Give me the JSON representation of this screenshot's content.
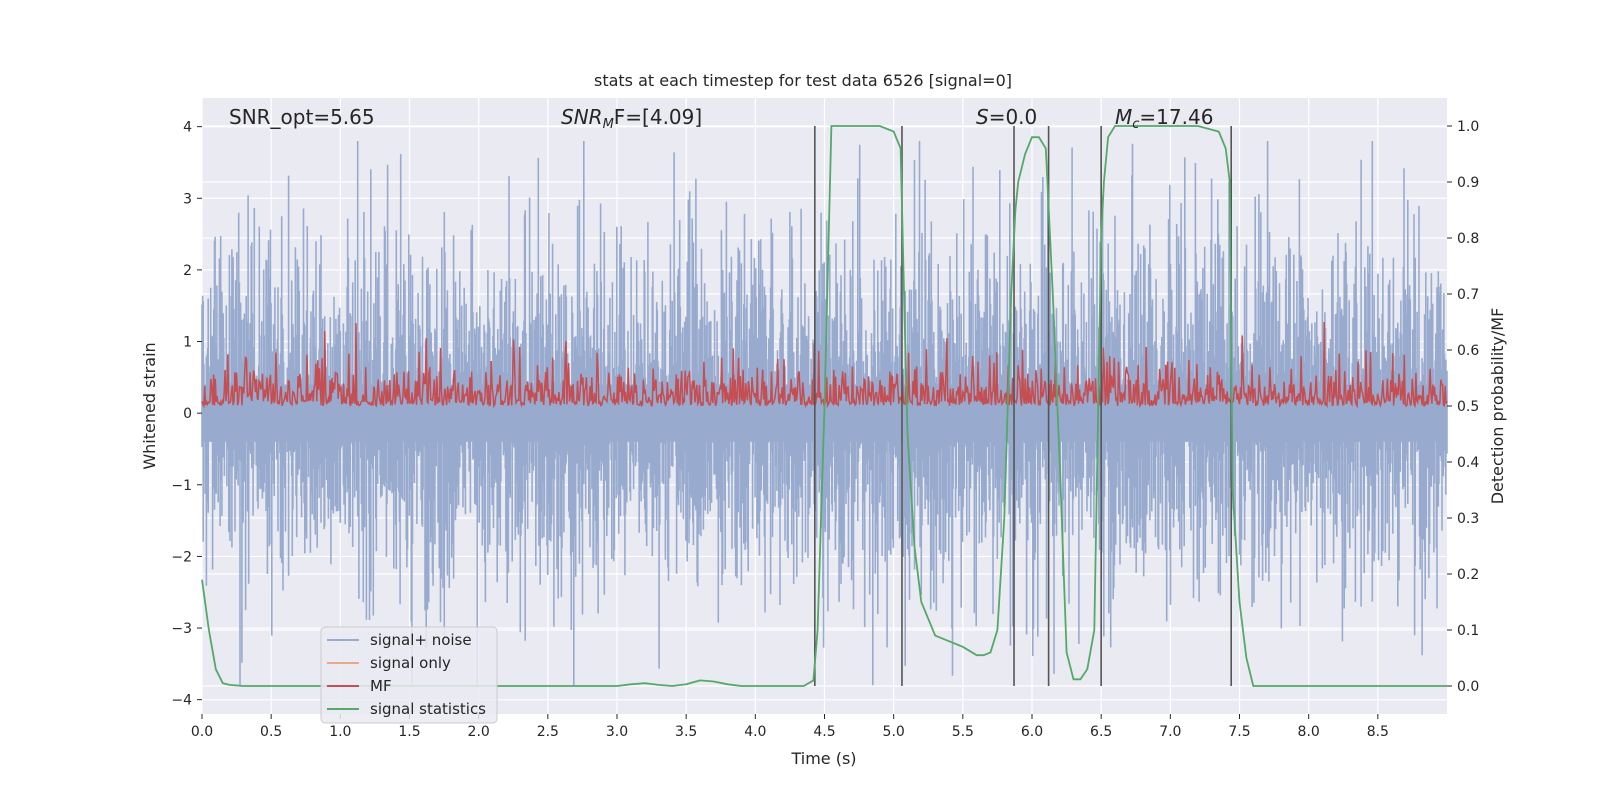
{
  "chart_data": {
    "type": "line",
    "title": "stats at each timestep for test data 6526 [signal=0]",
    "xlabel": "Time (s)",
    "ylabel_left": "Whitened strain",
    "ylabel_right": "Detection probability/MF",
    "xlim": [
      0,
      9
    ],
    "ylim_left": [
      -4.2,
      4.4
    ],
    "ylim_right": [
      -0.05,
      1.05
    ],
    "x_ticks": [
      "0.0",
      "0.5",
      "1.0",
      "1.5",
      "2.0",
      "2.5",
      "3.0",
      "3.5",
      "4.0",
      "4.5",
      "5.0",
      "5.5",
      "6.0",
      "6.5",
      "7.0",
      "7.5",
      "8.0",
      "8.5"
    ],
    "y_left_ticks": [
      "4",
      "3",
      "2",
      "1",
      "0",
      "−1",
      "−2",
      "−3",
      "−4"
    ],
    "y_right_ticks": [
      "1.0",
      "0.9",
      "0.8",
      "0.7",
      "0.6",
      "0.5",
      "0.4",
      "0.3",
      "0.2",
      "0.1",
      "0.0"
    ],
    "grid": true,
    "legend_position": "lower-left",
    "legend": [
      "signal+ noise",
      "signal only",
      "MF",
      "signal statistics"
    ],
    "annotations": {
      "snr_opt": "SNR_opt=5.65",
      "snr_mf_main": "SNR",
      "snr_mf_sub": "M",
      "snr_mf_tail": "F=[4.09]",
      "s_main": "S",
      "s_tail": "=0.0",
      "mc_main": "M",
      "mc_sub": "c",
      "mc_tail": "=17.46"
    },
    "colors": {
      "noise": "#98abcf",
      "signal_only": "#e8a88a",
      "mf": "#c44e52",
      "stat": "#55a868",
      "vline": "#555555",
      "background": "#eaeaf2",
      "grid": "#ffffff"
    },
    "series": [
      {
        "name": "signal statistics",
        "axis": "right",
        "x": [
          0.0,
          0.05,
          0.1,
          0.15,
          0.2,
          0.3,
          0.5,
          1.0,
          1.5,
          2.0,
          2.5,
          3.0,
          3.1,
          3.2,
          3.3,
          3.4,
          3.5,
          3.6,
          3.7,
          3.8,
          3.9,
          4.0,
          4.2,
          4.35,
          4.42,
          4.45,
          4.5,
          4.55,
          4.7,
          4.9,
          5.0,
          5.05,
          5.08,
          5.1,
          5.15,
          5.2,
          5.3,
          5.4,
          5.5,
          5.6,
          5.65,
          5.7,
          5.75,
          5.8,
          5.85,
          5.88,
          5.9,
          5.95,
          6.0,
          6.05,
          6.1,
          6.15,
          6.2,
          6.25,
          6.3,
          6.35,
          6.4,
          6.45,
          6.5,
          6.52,
          6.55,
          6.6,
          6.8,
          7.0,
          7.2,
          7.35,
          7.4,
          7.43,
          7.45,
          7.5,
          7.55,
          7.6,
          8.0,
          8.5,
          9.0
        ],
        "y": [
          0.19,
          0.1,
          0.03,
          0.005,
          0.002,
          0.0,
          0.0,
          0.0,
          0.0,
          0.0,
          0.0,
          0.0,
          0.003,
          0.005,
          0.002,
          0.0,
          0.003,
          0.01,
          0.008,
          0.003,
          0.0,
          0.0,
          0.0,
          0.0,
          0.01,
          0.1,
          0.5,
          1.0,
          1.0,
          1.0,
          0.99,
          0.96,
          0.65,
          0.45,
          0.25,
          0.15,
          0.09,
          0.08,
          0.07,
          0.055,
          0.055,
          0.06,
          0.1,
          0.3,
          0.7,
          0.85,
          0.9,
          0.95,
          0.98,
          0.98,
          0.96,
          0.7,
          0.4,
          0.06,
          0.012,
          0.012,
          0.03,
          0.1,
          0.8,
          0.9,
          0.98,
          1.0,
          1.0,
          1.0,
          1.0,
          0.99,
          0.96,
          0.9,
          0.35,
          0.15,
          0.05,
          0.0,
          0.0,
          0.0,
          0.0
        ]
      },
      {
        "name": "signal+ noise",
        "axis": "left",
        "description_range": [
          -3.8,
          3.8
        ]
      },
      {
        "name": "MF",
        "axis": "right",
        "description_range": [
          0.5,
          0.6
        ]
      }
    ],
    "vertical_lines_x": [
      4.43,
      5.06,
      5.87,
      6.12,
      6.5,
      7.44
    ]
  }
}
